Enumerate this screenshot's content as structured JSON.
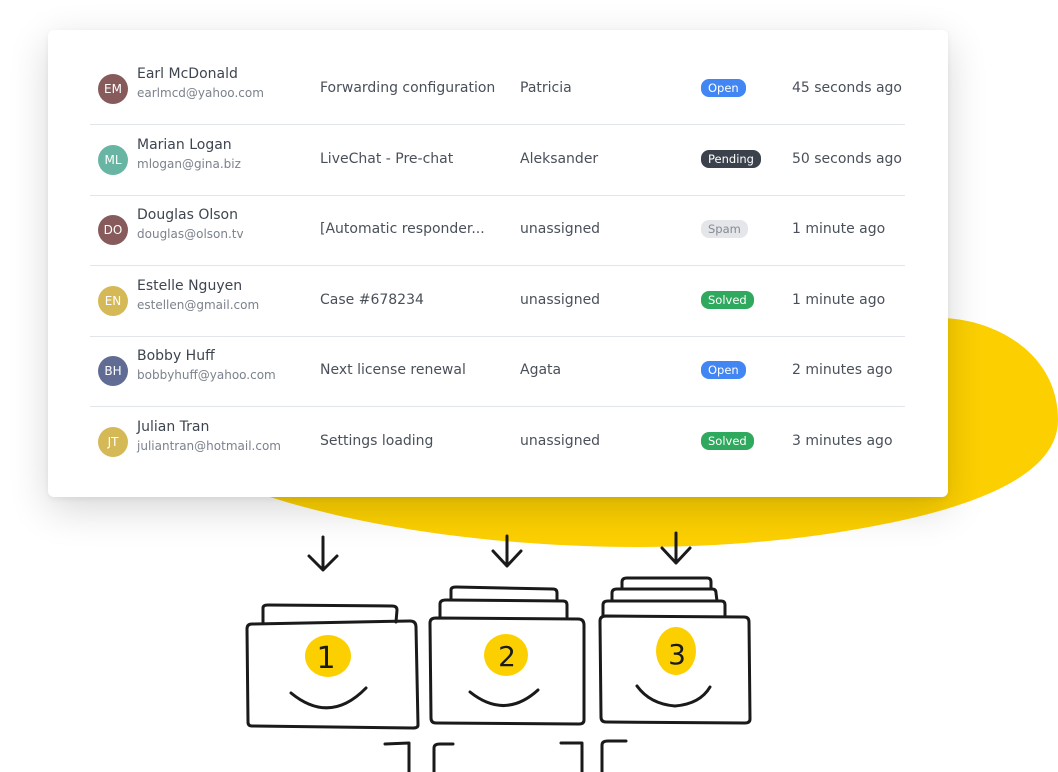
{
  "colors": {
    "accent_yellow": "#fcd000",
    "open": "#4286f4",
    "pending": "#3b424b",
    "spam": "#e4e6e9",
    "solved": "#2ea95e"
  },
  "tickets": [
    {
      "initials": "EM",
      "avatar_color": "#7b4a4a",
      "name": "Earl McDonald",
      "email": "earlmcd@yahoo.com",
      "subject": "Forwarding configuration",
      "agent": "Patricia",
      "status": "Open",
      "time": "45 seconds ago"
    },
    {
      "initials": "ML",
      "avatar_color": "#58ae9b",
      "name": "Marian Logan",
      "email": "mlogan@gina.biz",
      "subject": "LiveChat - Pre-chat",
      "agent": "Aleksander",
      "status": "Pending",
      "time": "50 seconds ago"
    },
    {
      "initials": "DO",
      "avatar_color": "#7b4a4a",
      "name": "Douglas Olson",
      "email": "douglas@olson.tv",
      "subject": "[Automatic responder...",
      "agent": "unassigned",
      "status": "Spam",
      "time": "1 minute ago"
    },
    {
      "initials": "EN",
      "avatar_color": "#d1b245",
      "name": "Estelle Nguyen",
      "email": "estellen@gmail.com",
      "subject": "Case #678234",
      "agent": "unassigned",
      "status": "Solved",
      "time": "1 minute ago"
    },
    {
      "initials": "BH",
      "avatar_color": "#515d8a",
      "name": "Bobby Huff",
      "email": "bobbyhuff@yahoo.com",
      "subject": "Next license renewal",
      "agent": "Agata",
      "status": "Open",
      "time": "2 minutes ago"
    },
    {
      "initials": "JT",
      "avatar_color": "#d1b245",
      "name": "Julian Tran",
      "email": "juliantran@hotmail.com",
      "subject": "Settings loading",
      "agent": "unassigned",
      "status": "Solved",
      "time": "3 minutes ago"
    }
  ],
  "illustration": {
    "queue_numbers": [
      "1",
      "2",
      "3"
    ]
  }
}
